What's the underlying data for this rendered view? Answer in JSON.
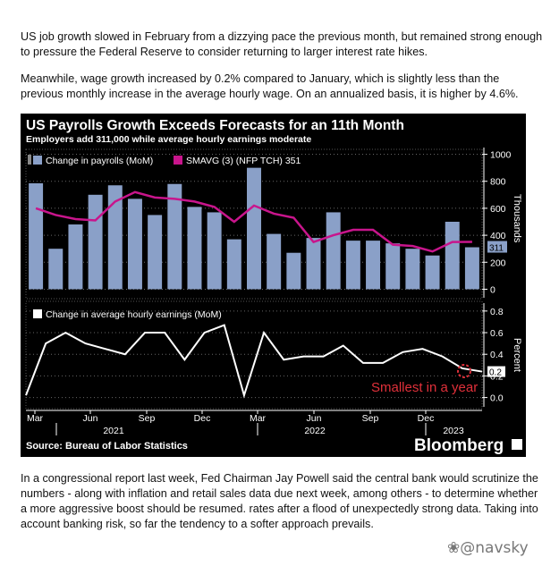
{
  "article": {
    "p1": "US job growth slowed in February from a dizzying pace the previous month, but remained strong enough to pressure the Federal Reserve to consider returning to larger interest rate hikes.",
    "p2": "Meanwhile, wage growth increased by 0.2% compared to January, which is slightly less than the previous monthly increase in the average hourly wage. On an annualized basis, it is higher by 4.6%.",
    "p3": "In a congressional report last week, Fed Chairman Jay Powell said the central bank would scrutinize the numbers - along with inflation and retail sales data due next week, among others - to determine whether a more aggressive boost should be resumed. rates after a flood of unexpectedly strong data. Taking into account banking risk, so far the tendency to a softer approach prevails."
  },
  "watermark": "@navsky",
  "chart_meta": {
    "title": "US Payrolls Growth Exceeds Forecasts for an 11th Month",
    "subtitle": "Employers add 311,000 while average hourly earnings moderate",
    "source": "Source: Bureau of Labor Statistics",
    "brand": "Bloomberg",
    "annotation": "Smallest in a year",
    "colors": {
      "bars": "#8aa0c8",
      "smavg": "#c8158c",
      "wage": "#ffffff",
      "annotation": "#e0303a",
      "background": "#000000"
    }
  },
  "chart_data": [
    {
      "type": "bar",
      "legend": [
        "Change in payrolls (MoM)",
        "SMAVG (3) (NFP TCH) 351"
      ],
      "ylabel": "Thousands",
      "ylim": [
        -50,
        1050
      ],
      "yticks": [
        "1000",
        "800",
        "600",
        "400",
        "200",
        "0"
      ],
      "last_value_label": "311",
      "series": [
        {
          "name": "Change in payrolls (MoM)",
          "values": [
            785,
            300,
            480,
            700,
            770,
            670,
            550,
            780,
            610,
            570,
            370,
            900,
            410,
            270,
            380,
            570,
            360,
            360,
            340,
            300,
            250,
            500,
            311
          ]
        },
        {
          "name": "SMAVG (3) (NFP TCH) 351",
          "values": [
            600,
            550,
            520,
            510,
            650,
            720,
            680,
            670,
            650,
            610,
            500,
            620,
            560,
            530,
            350,
            400,
            440,
            440,
            330,
            320,
            280,
            350,
            351
          ]
        }
      ]
    },
    {
      "type": "line",
      "legend": [
        "Change in average hourly earnings (MoM)"
      ],
      "ylabel": "Percent",
      "ylim": [
        -0.02,
        0.84
      ],
      "yticks": [
        "0.8",
        "0.6",
        "0.4",
        "0.2",
        "0.0"
      ],
      "last_value_label": "0.2",
      "series": [
        {
          "name": "Change in average hourly earnings (MoM)",
          "values": [
            0.02,
            0.5,
            0.6,
            0.5,
            0.45,
            0.4,
            0.6,
            0.6,
            0.35,
            0.6,
            0.67,
            0.02,
            0.6,
            0.35,
            0.38,
            0.38,
            0.48,
            0.32,
            0.32,
            0.42,
            0.45,
            0.38,
            0.27,
            0.24
          ]
        }
      ]
    }
  ],
  "x_axis": {
    "months": [
      "Mar",
      "Jun",
      "Sep",
      "Dec",
      "Mar",
      "Jun",
      "Sep",
      "Dec"
    ],
    "years": [
      "2021",
      "2022",
      "2023"
    ]
  }
}
